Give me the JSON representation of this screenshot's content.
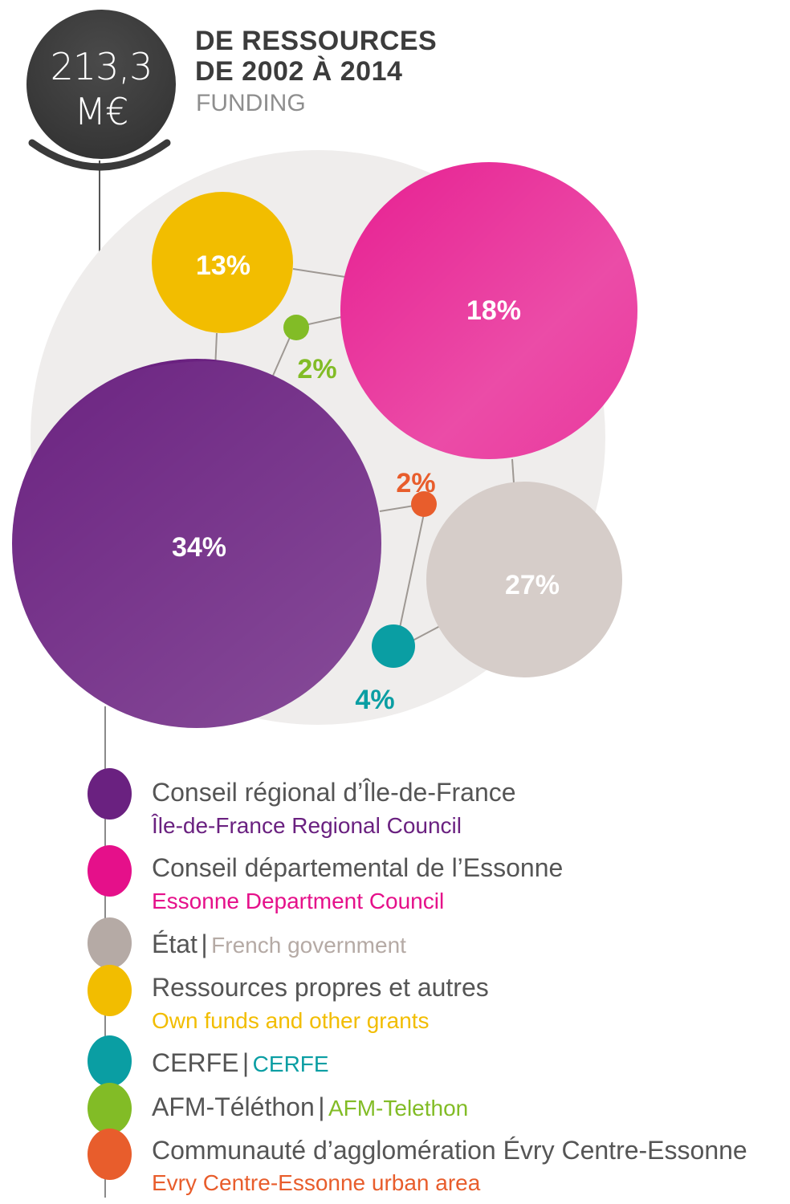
{
  "header": {
    "total_amount": "213,3",
    "total_unit": "M€",
    "title_line1": "DE RESSOURCES",
    "title_line2": "DE 2002 À 2014",
    "subtitle": "FUNDING"
  },
  "chart_data": {
    "type": "bubble",
    "title": "DE RESSOURCES DE 2002 À 2014",
    "subtitle": "FUNDING",
    "total": "213,3 M€",
    "series": [
      {
        "name": "Conseil régional d’Île-de-France",
        "value": 34,
        "label": "34%",
        "color": "#6a2180"
      },
      {
        "name": "Conseil départemental de l’Essonne",
        "value": 18,
        "label": "18%",
        "color": "#e5108a"
      },
      {
        "name": "État",
        "value": 27,
        "label": "27%",
        "color": "#d6cdc9"
      },
      {
        "name": "Ressources propres et autres",
        "value": 13,
        "label": "13%",
        "color": "#f2bd00"
      },
      {
        "name": "CERFE",
        "value": 4,
        "label": "4%",
        "color": "#0a9ea3"
      },
      {
        "name": "AFM-Téléthon",
        "value": 2,
        "label": "2%",
        "color": "#82bc26"
      },
      {
        "name": "Communauté d’agglomération Évry Centre-Essonne",
        "value": 2,
        "label": "2%",
        "color": "#e85d2c"
      }
    ]
  },
  "legend": [
    {
      "fr": "Conseil régional d’Île-de-France",
      "en": "Île-de-France Regional Council",
      "color": "#6a2180"
    },
    {
      "fr": "Conseil départemental de l’Essonne",
      "en": "Essonne Department Council",
      "color": "#e5108a"
    },
    {
      "fr": "État",
      "sep": "|",
      "en": "French government",
      "color": "#b5aaa5"
    },
    {
      "fr": "Ressources propres et autres",
      "en": "Own funds and other grants",
      "color": "#f2bd00"
    },
    {
      "fr": "CERFE",
      "sep": "|",
      "en": "CERFE",
      "color": "#0a9ea3"
    },
    {
      "fr": "AFM-Téléthon",
      "sep": "|",
      "en": "AFM-Telethon",
      "color": "#82bc26"
    },
    {
      "fr": "Communauté d’agglomération Évry Centre-Essonne",
      "en": "Evry Centre-Essonne urban area",
      "color": "#e85d2c"
    }
  ]
}
